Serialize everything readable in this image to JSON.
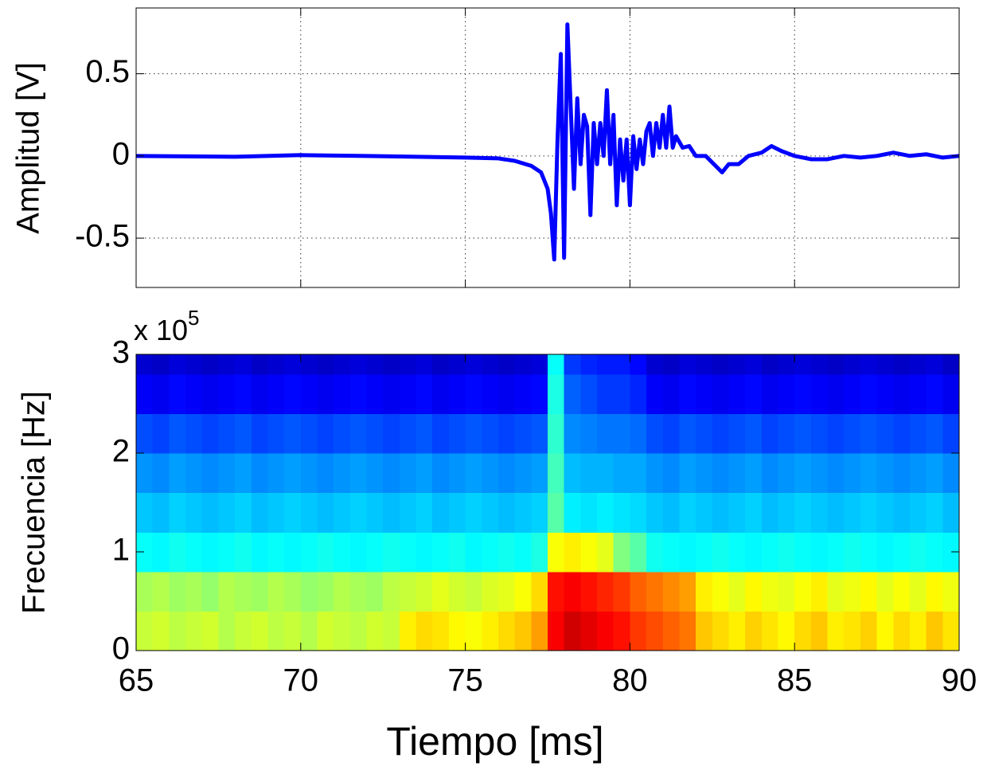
{
  "chart_data": [
    {
      "type": "line",
      "ylabel": "Amplitud [V]",
      "x": [
        65,
        68,
        70,
        72,
        75,
        76,
        76.5,
        77,
        77.3,
        77.5,
        77.6,
        77.7,
        77.8,
        77.9,
        78,
        78.1,
        78.2,
        78.3,
        78.4,
        78.5,
        78.6,
        78.7,
        78.8,
        78.9,
        79,
        79.1,
        79.2,
        79.3,
        79.4,
        79.5,
        79.6,
        79.7,
        79.8,
        79.9,
        80,
        80.1,
        80.2,
        80.3,
        80.4,
        80.5,
        80.6,
        80.7,
        80.8,
        80.9,
        81,
        81.1,
        81.2,
        81.3,
        81.4,
        81.6,
        81.8,
        82,
        82.3,
        82.6,
        82.8,
        83,
        83.3,
        83.6,
        84,
        84.3,
        84.6,
        85,
        85.5,
        86,
        86.5,
        87,
        87.5,
        88,
        88.5,
        89,
        89.5,
        90
      ],
      "series": [
        {
          "color": "#0000ff",
          "values": [
            0,
            -0.005,
            0.005,
            0,
            -0.01,
            -0.015,
            -0.03,
            -0.06,
            -0.1,
            -0.2,
            -0.35,
            -0.63,
            0.1,
            0.62,
            -0.62,
            0.8,
            0.3,
            -0.2,
            0.35,
            -0.05,
            0.25,
            0.18,
            -0.36,
            0.2,
            -0.05,
            0.2,
            0,
            0.4,
            -0.05,
            0.25,
            -0.3,
            0.1,
            -0.15,
            0.1,
            -0.3,
            0.12,
            -0.08,
            0.1,
            -0.05,
            0.15,
            0.2,
            0,
            0.2,
            0.05,
            0.25,
            0.05,
            0.3,
            0.05,
            0.12,
            0.05,
            0.06,
            0,
            0,
            -0.06,
            -0.1,
            -0.05,
            -0.05,
            0,
            0.02,
            0.06,
            0.03,
            0,
            -0.02,
            -0.02,
            0,
            -0.01,
            0,
            0.02,
            0,
            0.01,
            -0.01,
            0
          ]
        }
      ],
      "xlim": [
        65,
        90
      ],
      "xticks": [
        65,
        70,
        75,
        80,
        85,
        90
      ],
      "ylim": [
        -0.8,
        0.9
      ],
      "yticks": [
        -0.5,
        0,
        0.5
      ],
      "grid": true
    },
    {
      "type": "spectrogram",
      "xlabel": "Tiempo [ms]",
      "ylabel": "Frecuencia [Hz]",
      "y_multiplier": "x 10",
      "y_multiplier_exponent": "5",
      "colormap": "jet",
      "clim": [
        0,
        1
      ],
      "time_bins": [
        65,
        65.5,
        66,
        66.5,
        67,
        67.5,
        68,
        68.5,
        69,
        69.5,
        70,
        70.5,
        71,
        71.5,
        72,
        72.5,
        73,
        73.5,
        74,
        74.5,
        75,
        75.5,
        76,
        76.5,
        77,
        77.5,
        78,
        78.5,
        79,
        79.5,
        80,
        80.5,
        81,
        81.5,
        82,
        82.5,
        83,
        83.5,
        84,
        84.5,
        85,
        85.5,
        86,
        86.5,
        87,
        87.5,
        88,
        88.5,
        89,
        89.5,
        90
      ],
      "freq_bins": [
        0,
        40000,
        80000,
        120000,
        160000,
        200000,
        240000,
        280000,
        300000
      ],
      "values": [
        [
          0.57,
          0.58,
          0.56,
          0.57,
          0.58,
          0.55,
          0.57,
          0.58,
          0.56,
          0.57,
          0.55,
          0.58,
          0.57,
          0.56,
          0.58,
          0.57,
          0.64,
          0.66,
          0.65,
          0.63,
          0.62,
          0.64,
          0.66,
          0.68,
          0.72,
          0.88,
          0.92,
          0.9,
          0.88,
          0.86,
          0.82,
          0.8,
          0.78,
          0.76,
          0.68,
          0.66,
          0.64,
          0.67,
          0.65,
          0.63,
          0.66,
          0.68,
          0.64,
          0.65,
          0.67,
          0.63,
          0.66,
          0.64,
          0.68,
          0.65
        ],
        [
          0.54,
          0.55,
          0.53,
          0.54,
          0.52,
          0.55,
          0.54,
          0.53,
          0.55,
          0.54,
          0.52,
          0.53,
          0.55,
          0.54,
          0.53,
          0.56,
          0.57,
          0.58,
          0.6,
          0.58,
          0.57,
          0.59,
          0.6,
          0.62,
          0.66,
          0.86,
          0.88,
          0.86,
          0.84,
          0.82,
          0.78,
          0.76,
          0.74,
          0.72,
          0.64,
          0.62,
          0.6,
          0.63,
          0.61,
          0.6,
          0.62,
          0.64,
          0.6,
          0.61,
          0.63,
          0.6,
          0.62,
          0.6,
          0.63,
          0.61
        ],
        [
          0.38,
          0.37,
          0.39,
          0.38,
          0.37,
          0.38,
          0.39,
          0.37,
          0.38,
          0.37,
          0.38,
          0.39,
          0.38,
          0.37,
          0.38,
          0.39,
          0.38,
          0.37,
          0.38,
          0.39,
          0.37,
          0.38,
          0.39,
          0.38,
          0.4,
          0.62,
          0.64,
          0.62,
          0.6,
          0.5,
          0.46,
          0.39,
          0.38,
          0.37,
          0.38,
          0.39,
          0.38,
          0.37,
          0.38,
          0.39,
          0.38,
          0.37,
          0.38,
          0.39,
          0.38,
          0.37,
          0.38,
          0.39,
          0.38,
          0.37
        ],
        [
          0.32,
          0.31,
          0.33,
          0.32,
          0.31,
          0.32,
          0.33,
          0.31,
          0.32,
          0.33,
          0.32,
          0.31,
          0.32,
          0.33,
          0.32,
          0.31,
          0.32,
          0.33,
          0.31,
          0.32,
          0.33,
          0.32,
          0.31,
          0.32,
          0.33,
          0.46,
          0.36,
          0.35,
          0.36,
          0.35,
          0.34,
          0.32,
          0.31,
          0.33,
          0.32,
          0.31,
          0.32,
          0.33,
          0.31,
          0.32,
          0.33,
          0.32,
          0.31,
          0.32,
          0.33,
          0.32,
          0.31,
          0.32,
          0.33,
          0.31
        ],
        [
          0.27,
          0.26,
          0.28,
          0.27,
          0.26,
          0.27,
          0.28,
          0.26,
          0.27,
          0.28,
          0.27,
          0.26,
          0.27,
          0.28,
          0.27,
          0.26,
          0.27,
          0.28,
          0.26,
          0.27,
          0.28,
          0.27,
          0.26,
          0.27,
          0.28,
          0.44,
          0.31,
          0.3,
          0.3,
          0.29,
          0.29,
          0.27,
          0.26,
          0.28,
          0.27,
          0.26,
          0.27,
          0.28,
          0.26,
          0.27,
          0.28,
          0.27,
          0.26,
          0.27,
          0.28,
          0.27,
          0.26,
          0.27,
          0.28,
          0.26
        ],
        [
          0.2,
          0.19,
          0.21,
          0.2,
          0.19,
          0.2,
          0.21,
          0.19,
          0.2,
          0.21,
          0.2,
          0.19,
          0.2,
          0.21,
          0.2,
          0.19,
          0.2,
          0.21,
          0.19,
          0.2,
          0.21,
          0.2,
          0.19,
          0.2,
          0.21,
          0.42,
          0.26,
          0.25,
          0.24,
          0.24,
          0.23,
          0.2,
          0.19,
          0.21,
          0.2,
          0.19,
          0.2,
          0.21,
          0.19,
          0.2,
          0.21,
          0.2,
          0.19,
          0.2,
          0.21,
          0.2,
          0.19,
          0.2,
          0.21,
          0.19
        ],
        [
          0.12,
          0.11,
          0.13,
          0.12,
          0.11,
          0.12,
          0.13,
          0.11,
          0.12,
          0.13,
          0.12,
          0.11,
          0.12,
          0.13,
          0.12,
          0.11,
          0.12,
          0.13,
          0.11,
          0.12,
          0.13,
          0.12,
          0.11,
          0.12,
          0.13,
          0.4,
          0.22,
          0.2,
          0.18,
          0.18,
          0.16,
          0.12,
          0.11,
          0.13,
          0.12,
          0.11,
          0.12,
          0.13,
          0.11,
          0.12,
          0.13,
          0.12,
          0.11,
          0.12,
          0.13,
          0.12,
          0.11,
          0.12,
          0.13,
          0.11
        ],
        [
          0.08,
          0.07,
          0.09,
          0.08,
          0.07,
          0.08,
          0.09,
          0.07,
          0.08,
          0.09,
          0.08,
          0.07,
          0.08,
          0.09,
          0.08,
          0.07,
          0.08,
          0.09,
          0.07,
          0.08,
          0.09,
          0.08,
          0.07,
          0.08,
          0.09,
          0.38,
          0.18,
          0.16,
          0.15,
          0.15,
          0.13,
          0.08,
          0.07,
          0.09,
          0.08,
          0.07,
          0.08,
          0.09,
          0.07,
          0.08,
          0.09,
          0.08,
          0.07,
          0.08,
          0.09,
          0.08,
          0.07,
          0.08,
          0.09,
          0.07
        ]
      ],
      "xlim": [
        65,
        90
      ],
      "xticks": [
        65,
        70,
        75,
        80,
        85,
        90
      ],
      "ylim": [
        0,
        300000
      ],
      "yticks": [
        0,
        {
          "value": 100000,
          "label": "1"
        },
        {
          "value": 200000,
          "label": "2"
        },
        {
          "value": 300000,
          "label": "3"
        }
      ],
      "grid": false
    }
  ]
}
